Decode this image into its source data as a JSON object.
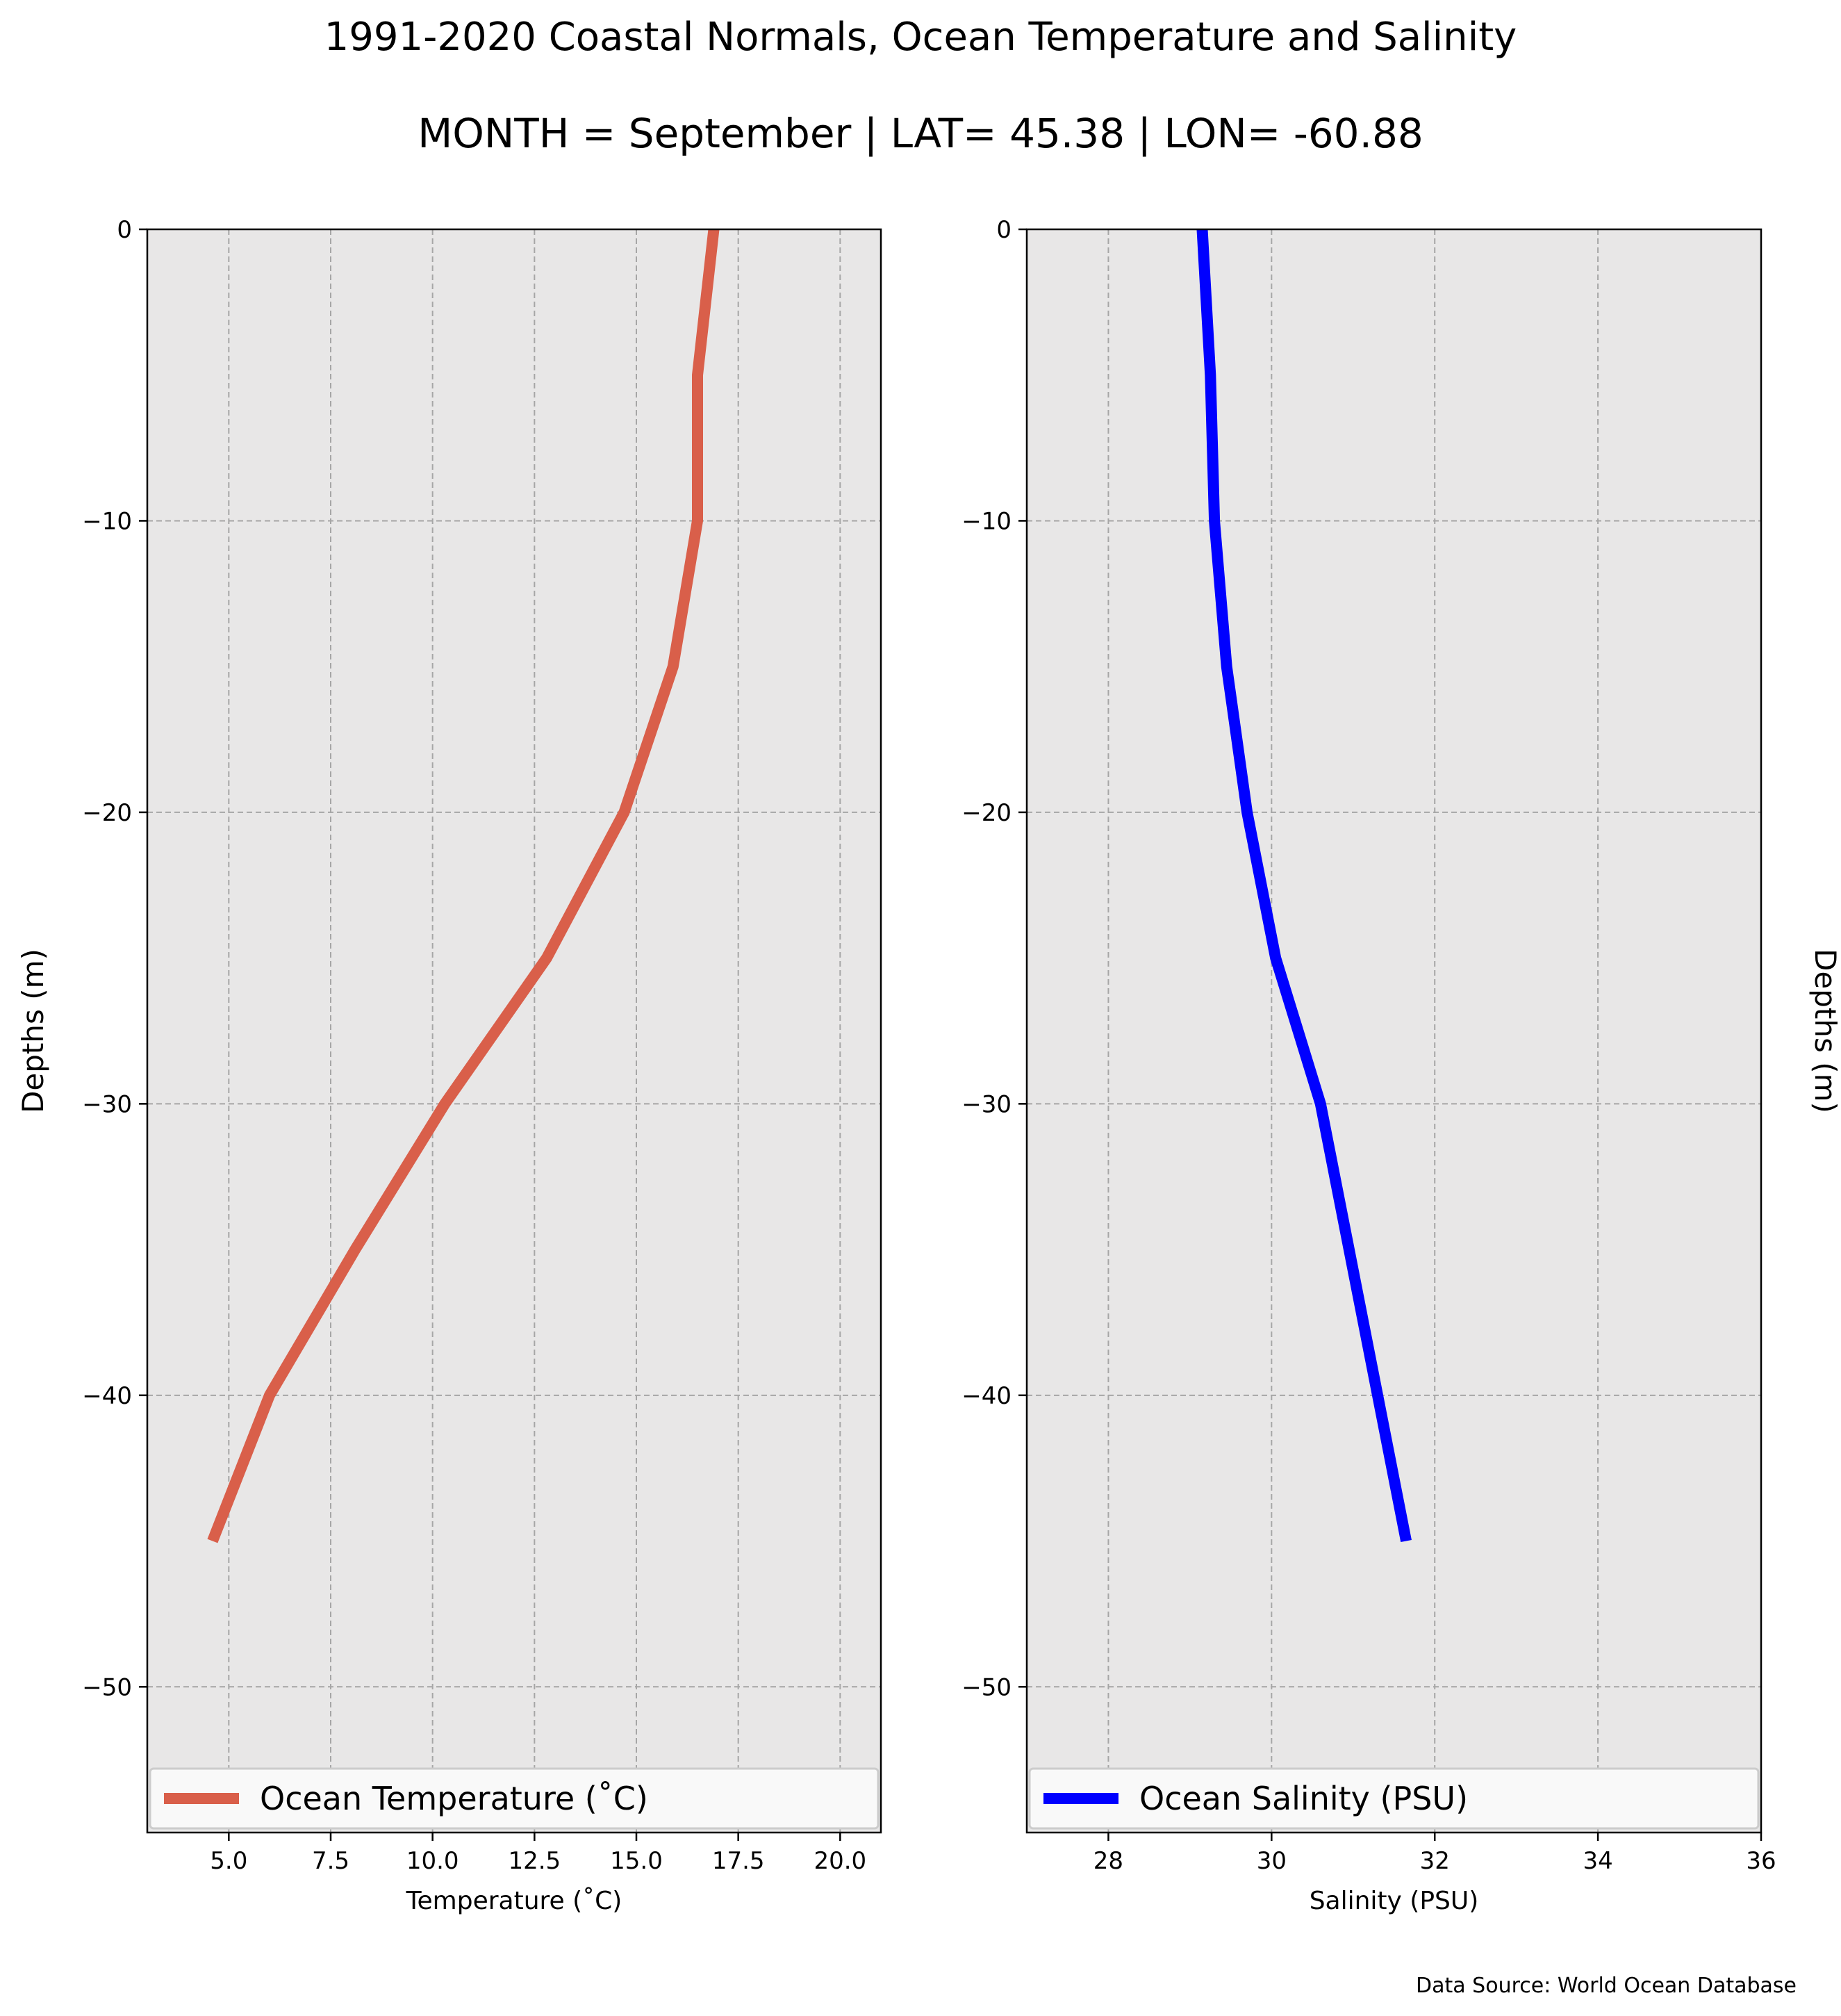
{
  "figure": {
    "title": "1991-2020 Coastal Normals, Ocean Temperature and Salinity",
    "subtitle": "MONTH = September | LAT= 45.38 | LON= -60.88",
    "source_note": "Data Source: World Ocean Database"
  },
  "chart_data": [
    {
      "type": "line",
      "xlabel": "Temperature (˚C)",
      "ylabel": "Depths (m)",
      "ylabel_position": "left",
      "xlim": [
        3.0,
        21.0
      ],
      "ylim": [
        -55,
        0
      ],
      "grid": true,
      "legend_position": "lower-center",
      "xticks": [
        5.0,
        7.5,
        10.0,
        12.5,
        15.0,
        17.5,
        20.0
      ],
      "xtick_labels": [
        "5.0",
        "7.5",
        "10.0",
        "12.5",
        "15.0",
        "17.5",
        "20.0"
      ],
      "yticks": [
        0,
        -10,
        -20,
        -30,
        -40,
        -50
      ],
      "ytick_labels": [
        "0",
        "−10",
        "−20",
        "−30",
        "−40",
        "−50"
      ],
      "background_color": "#e8e7e7",
      "series": [
        {
          "name": "Ocean Temperature (˚C)",
          "color": "#d95f4a",
          "x": [
            16.9,
            16.5,
            16.5,
            15.9,
            14.7,
            12.8,
            10.3,
            8.1,
            6.0,
            4.6
          ],
          "y": [
            0,
            -5,
            -10,
            -15,
            -20,
            -25,
            -30,
            -35,
            -40,
            -45
          ]
        }
      ]
    },
    {
      "type": "line",
      "xlabel": "Salinity (PSU)",
      "ylabel": "Depths (m)",
      "ylabel_position": "right",
      "xlim": [
        27.0,
        36.0
      ],
      "ylim": [
        -55,
        0
      ],
      "grid": true,
      "legend_position": "lower-center",
      "xticks": [
        28,
        30,
        32,
        34,
        36
      ],
      "xtick_labels": [
        "28",
        "30",
        "32",
        "34",
        "36"
      ],
      "yticks": [
        0,
        -10,
        -20,
        -30,
        -40,
        -50
      ],
      "ytick_labels": [
        "0",
        "−10",
        "−20",
        "−30",
        "−40",
        "−50"
      ],
      "background_color": "#e8e7e7",
      "series": [
        {
          "name": "Ocean Salinity (PSU)",
          "color": "#0000ff",
          "x": [
            29.15,
            29.25,
            29.3,
            29.45,
            29.7,
            30.05,
            30.6,
            30.95,
            31.3,
            31.65
          ],
          "y": [
            0,
            -5,
            -10,
            -15,
            -20,
            -25,
            -30,
            -35,
            -40,
            -45
          ]
        }
      ]
    }
  ]
}
